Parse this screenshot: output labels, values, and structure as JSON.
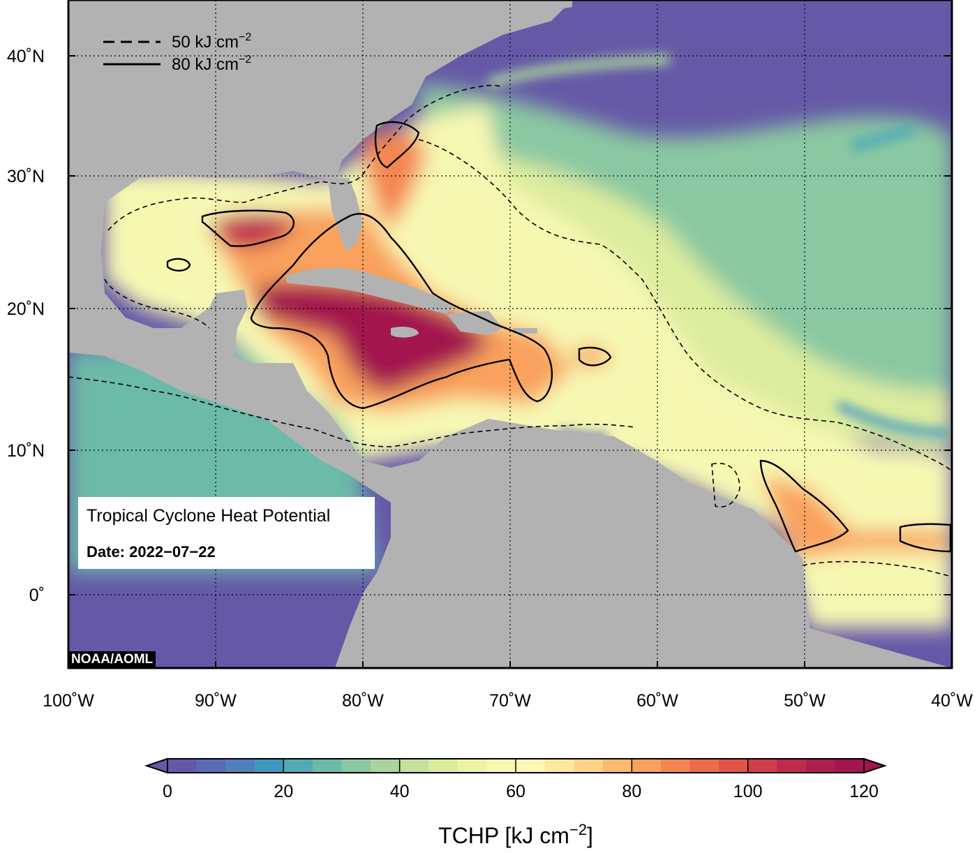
{
  "map": {
    "lon_ticks": [
      "100˚W",
      "90˚W",
      "80˚W",
      "70˚W",
      "60˚W",
      "50˚W",
      "40˚W"
    ],
    "lat_ticks": [
      "40˚N",
      "30˚N",
      "20˚N",
      "10˚N",
      "0˚"
    ],
    "lon_range": [
      -100,
      -40
    ],
    "lat_range": [
      -5,
      44
    ],
    "grid": true,
    "colors": {
      "land": "#b2b2b2",
      "frame": "#000000",
      "low_heat": "#6559a7",
      "high_heat": "#a3154e"
    }
  },
  "legend": {
    "entries": [
      {
        "style": "dashed",
        "label": "50 kJ cm",
        "sup": "−2"
      },
      {
        "style": "solid",
        "label": "80 kJ cm",
        "sup": "−2"
      }
    ]
  },
  "info": {
    "title": "Tropical Cyclone Heat Potential",
    "date": "Date: 2022−07−22"
  },
  "credit": "NOAA/AOML",
  "colorbar": {
    "ticks": [
      "0",
      "20",
      "40",
      "60",
      "80",
      "100",
      "120"
    ],
    "min": 0,
    "max": 120,
    "step": 4,
    "title_main": "TCHP [kJ cm",
    "title_sup": "−2",
    "title_end": "]",
    "colors": [
      "#6559a7",
      "#5b6bb0",
      "#4f80b8",
      "#3f97bf",
      "#52aab5",
      "#6cbaa8",
      "#8ac8a1",
      "#a9d59c",
      "#c5e19d",
      "#dcec9e",
      "#ecf3a6",
      "#f6f8b2",
      "#fdf6b6",
      "#fde8a0",
      "#fdd487",
      "#fbbb6f",
      "#f9a15d",
      "#f48651",
      "#ec6b4b",
      "#e0544a",
      "#cf3e4c",
      "#bd2b4d",
      "#ae1e4f",
      "#a3154e"
    ]
  }
}
